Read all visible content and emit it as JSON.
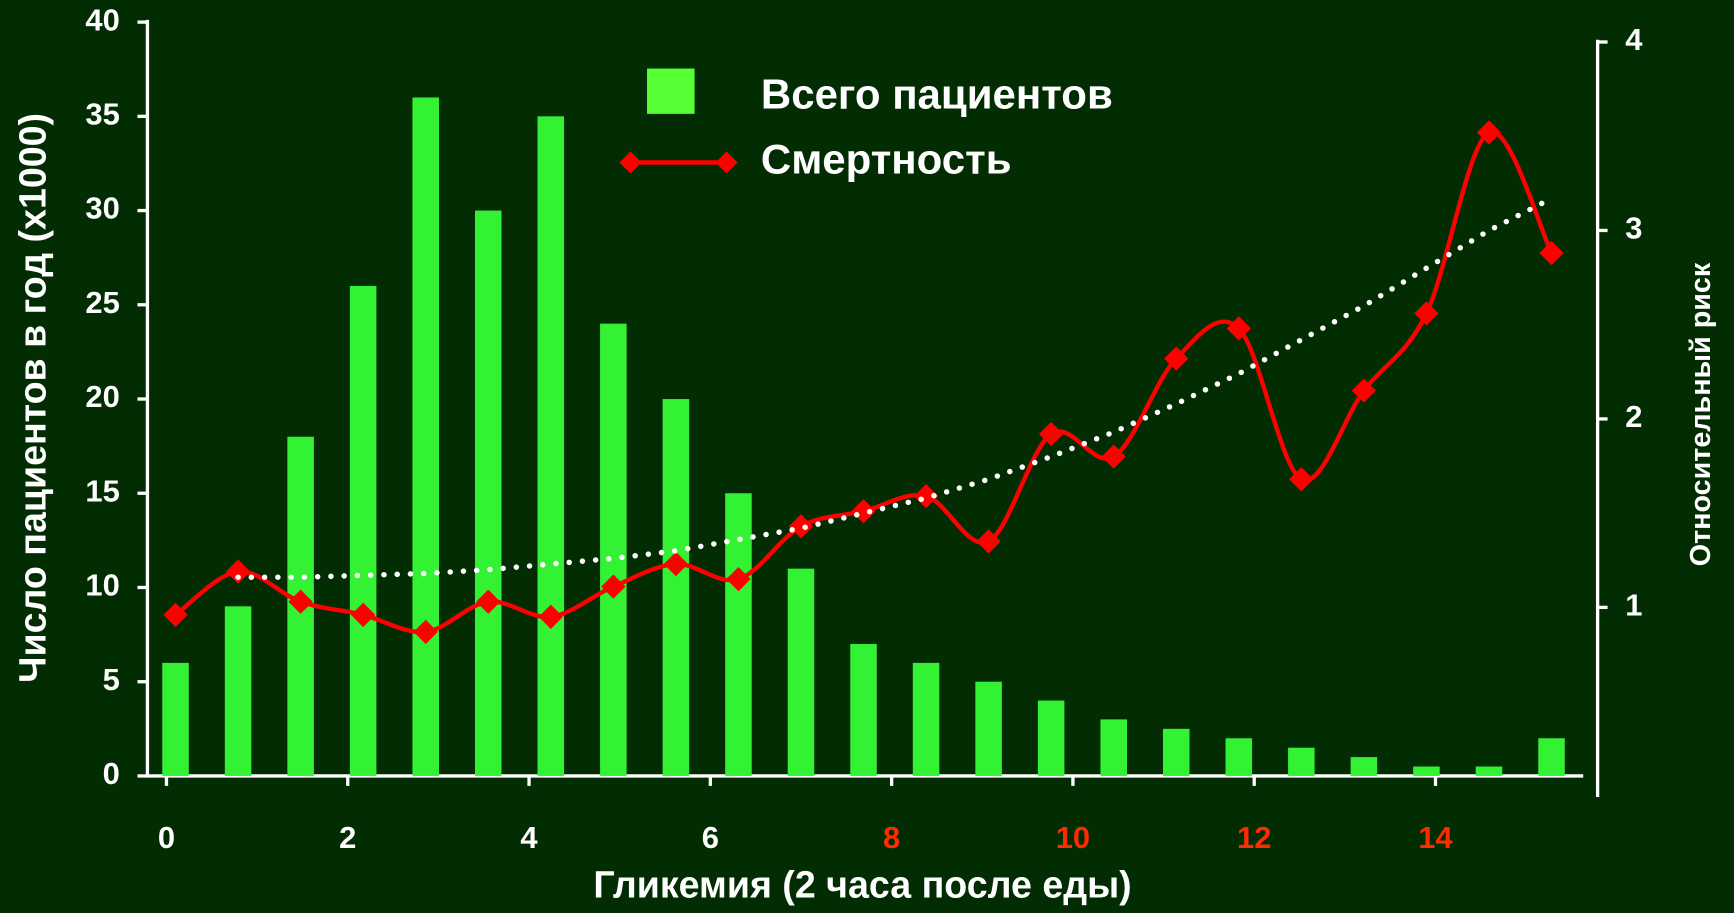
{
  "chart_data": {
    "type": "bar",
    "background": "#022c02",
    "x_label": "Гликемия (2 часа после еды)",
    "y_label": "Число пациентов в год (x1000)",
    "y2_label": "Относительный риск",
    "xlim": [
      -0.21,
      15.63
    ],
    "xticks": [
      0,
      2,
      4,
      6,
      8,
      10,
      12,
      14
    ],
    "xtick_label_colors": [
      "#ffffff",
      "#ffffff",
      "#ffffff",
      "#ffffff",
      "#ff2a00",
      "#ff2a00",
      "#ff2a00",
      "#ff2a00"
    ],
    "ylim": [
      0,
      40
    ],
    "yticks": [
      0,
      5,
      10,
      15,
      20,
      25,
      30,
      35,
      40
    ],
    "y2lim": [
      0,
      4
    ],
    "y2ticks": [
      1,
      2,
      3,
      4
    ],
    "x": [
      0.1,
      0.79,
      1.48,
      2.17,
      2.86,
      3.55,
      4.24,
      4.93,
      5.62,
      6.31,
      7.0,
      7.69,
      8.38,
      9.07,
      9.76,
      10.45,
      11.14,
      11.83,
      12.52,
      13.21,
      13.9,
      14.59,
      15.28
    ],
    "series": [
      {
        "name": "Всего пациентов",
        "type": "bar",
        "color": "#33f233",
        "values": [
          6,
          9,
          18,
          26,
          36,
          30,
          35,
          24,
          20,
          15,
          11,
          7,
          6,
          5,
          4,
          3,
          2.5,
          2,
          1.5,
          1,
          0.5,
          0.5,
          2
        ]
      },
      {
        "name": "Смертность",
        "type": "line",
        "axis": "y2",
        "color": "#ff0000",
        "smooth": true,
        "marker": "diamond",
        "values": [
          0.96,
          1.19,
          1.03,
          0.96,
          0.87,
          1.03,
          0.95,
          1.11,
          1.23,
          1.15,
          1.43,
          1.51,
          1.59,
          1.35,
          1.92,
          1.8,
          2.32,
          2.48,
          1.68,
          2.15,
          2.56,
          3.52,
          2.88
        ]
      },
      {
        "type": "line",
        "axis": "y2",
        "color": "#ffffff",
        "dotted": true,
        "values": [
          null,
          1.16,
          1.16,
          1.17,
          1.18,
          1.2,
          1.23,
          1.26,
          1.3,
          1.36,
          1.42,
          1.5,
          1.58,
          1.68,
          1.8,
          1.93,
          2.08,
          2.24,
          2.42,
          2.6,
          2.8,
          3.0,
          3.17
        ]
      }
    ]
  }
}
